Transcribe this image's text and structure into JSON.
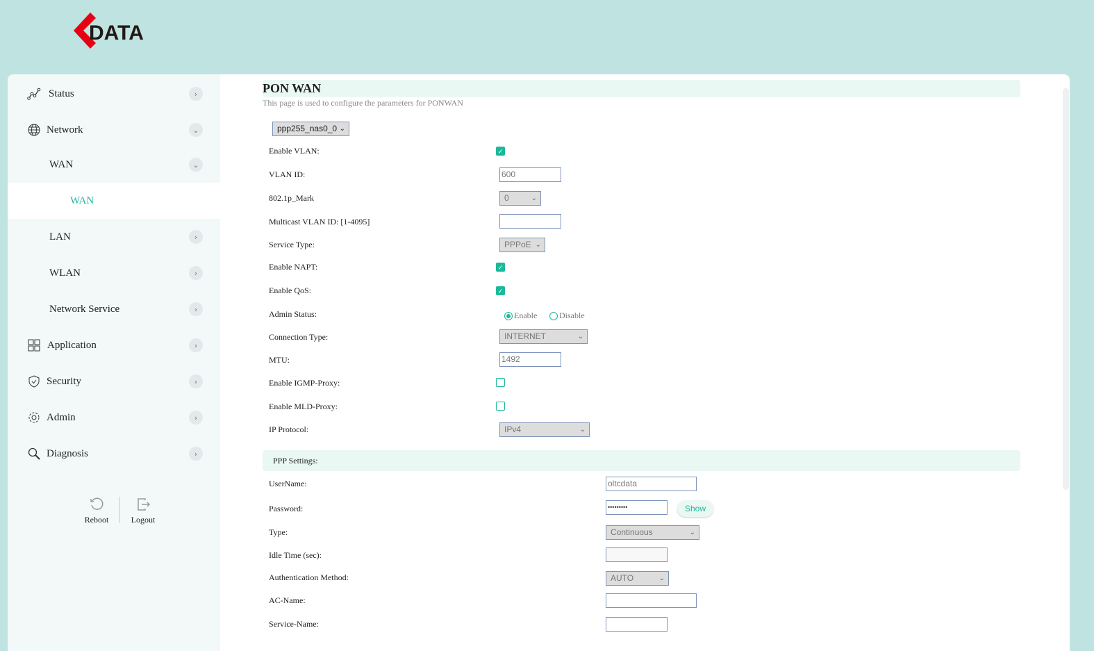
{
  "brand": {
    "logo_text": "DATA",
    "accent": "#1bb99a",
    "logo_red": "#e60012"
  },
  "sidebar": {
    "items": [
      {
        "label": "Status",
        "icon": "chart-line-icon"
      },
      {
        "label": "Network",
        "icon": "globe-icon"
      },
      {
        "label": "WAN"
      },
      {
        "label": "WAN"
      },
      {
        "label": "LAN"
      },
      {
        "label": "WLAN"
      },
      {
        "label": "Network Service"
      },
      {
        "label": "Application",
        "icon": "grid-icon"
      },
      {
        "label": "Security",
        "icon": "shield-icon"
      },
      {
        "label": "Admin",
        "icon": "gear-icon"
      },
      {
        "label": "Diagnosis",
        "icon": "search-icon"
      }
    ],
    "reboot": "Reboot",
    "logout": "Logout"
  },
  "page": {
    "title": "PON WAN",
    "subtitle": "This page is used to configure the parameters for PONWAN",
    "connection": "ppp255_nas0_0"
  },
  "form": {
    "enable_vlan": "Enable VLAN:",
    "vlan_id": "VLAN ID:",
    "vlan_id_value": "600",
    "mark": "802.1p_Mark",
    "mark_value": "0",
    "mcast": "Multicast VLAN ID: [1-4095]",
    "service_type": "Service Type:",
    "service_type_value": "PPPoE",
    "napt": "Enable NAPT:",
    "qos": "Enable QoS:",
    "admin_status": "Admin Status:",
    "enable": "Enable",
    "disable": "Disable",
    "conn_type": "Connection Type:",
    "conn_type_value": "INTERNET",
    "mtu": "MTU:",
    "mtu_value": "1492",
    "igmp": "Enable IGMP-Proxy:",
    "mld": "Enable MLD-Proxy:",
    "ip_protocol": "IP Protocol:",
    "ip_protocol_value": "IPv4"
  },
  "ppp": {
    "header": "PPP Settings:",
    "username": "UserName:",
    "username_value": "oltcdata",
    "password": "Password:",
    "password_value": "•••••••••",
    "show": "Show",
    "type": "Type:",
    "type_value": "Continuous",
    "idle": "Idle Time (sec):",
    "auth": "Authentication Method:",
    "auth_value": "AUTO",
    "ac": "AC-Name:",
    "service": "Service-Name:"
  }
}
